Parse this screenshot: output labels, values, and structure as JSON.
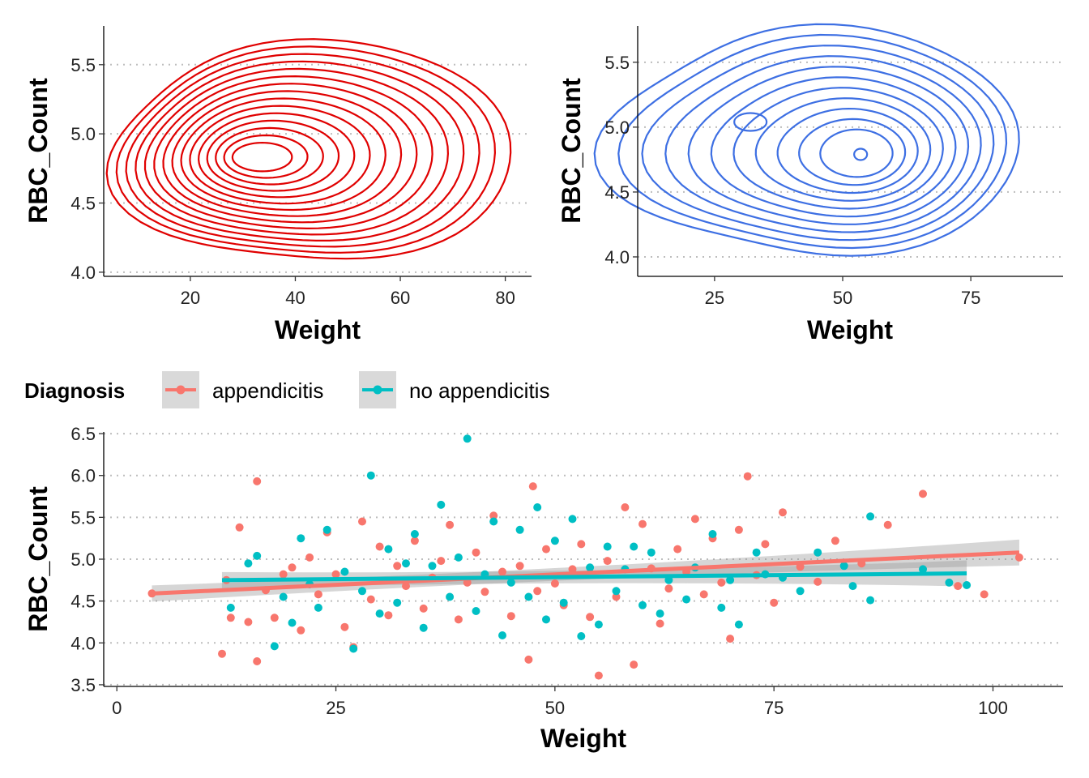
{
  "chart_data": [
    {
      "type": "contour",
      "xlabel": "Weight",
      "ylabel": "RBC_Count",
      "xticks": [
        20,
        40,
        60,
        80
      ],
      "yticks": [
        "4.0",
        "4.5",
        "5.0",
        "5.5"
      ],
      "xlim": [
        3.5,
        85
      ],
      "ylim": [
        3.97,
        5.78
      ],
      "grid": "horizontal dotted",
      "color": "#e00000",
      "peak": {
        "x": 33,
        "y": 4.83
      },
      "levels": 15
    },
    {
      "type": "contour",
      "xlabel": "Weight",
      "ylabel": "RBC_Count",
      "xticks": [
        25,
        50,
        75
      ],
      "yticks": [
        "4.0",
        "4.5",
        "5.0",
        "5.5"
      ],
      "xlim": [
        10,
        93
      ],
      "ylim": [
        3.85,
        5.78
      ],
      "grid": "horizontal dotted",
      "color": "#3d6fe3",
      "peaks": [
        {
          "x": 53.5,
          "y": 4.79
        },
        {
          "x": 32,
          "y": 5.04
        }
      ],
      "levels": 11
    },
    {
      "type": "scatter",
      "xlabel": "Weight",
      "ylabel": "RBC_Count",
      "xticks": [
        "0",
        "25",
        "50",
        "75",
        "100"
      ],
      "yticks": [
        "3.5",
        "4.0",
        "4.5",
        "5.0",
        "5.5",
        "6.0",
        "6.5"
      ],
      "xlim": [
        -1.5,
        108
      ],
      "ylim": [
        3.48,
        6.52
      ],
      "grid": "horizontal dotted",
      "legend": {
        "title": "Diagnosis",
        "position": "top",
        "entries": [
          {
            "label": "appendicitis",
            "color": "#f8766d"
          },
          {
            "label": "no appendicitis",
            "color": "#00bfc4"
          }
        ]
      },
      "series": [
        {
          "name": "appendicitis",
          "color": "#f8766d",
          "trend": {
            "x": [
              4,
              103
            ],
            "y": [
              4.59,
              5.08
            ]
          },
          "points": [
            [
              4,
              4.59
            ],
            [
              12,
              3.87
            ],
            [
              12.5,
              4.75
            ],
            [
              13,
              4.3
            ],
            [
              14,
              5.38
            ],
            [
              15,
              4.25
            ],
            [
              16,
              3.78
            ],
            [
              16,
              5.93
            ],
            [
              17,
              4.63
            ],
            [
              18,
              4.3
            ],
            [
              19,
              4.82
            ],
            [
              20,
              4.9
            ],
            [
              21,
              4.15
            ],
            [
              22,
              5.02
            ],
            [
              23,
              4.58
            ],
            [
              24,
              5.32
            ],
            [
              25,
              4.82
            ],
            [
              26,
              4.19
            ],
            [
              27,
              3.95
            ],
            [
              28,
              5.45
            ],
            [
              29,
              4.52
            ],
            [
              30,
              5.15
            ],
            [
              31,
              4.33
            ],
            [
              32,
              4.92
            ],
            [
              33,
              4.68
            ],
            [
              34,
              5.22
            ],
            [
              35,
              4.41
            ],
            [
              36,
              4.78
            ],
            [
              37,
              4.98
            ],
            [
              38,
              5.41
            ],
            [
              39,
              4.28
            ],
            [
              40,
              4.72
            ],
            [
              41,
              5.08
            ],
            [
              42,
              4.61
            ],
            [
              43,
              5.52
            ],
            [
              44,
              4.85
            ],
            [
              45,
              4.32
            ],
            [
              46,
              4.92
            ],
            [
              47,
              3.8
            ],
            [
              47.5,
              5.87
            ],
            [
              48,
              4.62
            ],
            [
              49,
              5.12
            ],
            [
              50,
              4.71
            ],
            [
              51,
              4.45
            ],
            [
              52,
              4.88
            ],
            [
              53,
              5.18
            ],
            [
              54,
              4.31
            ],
            [
              55,
              3.61
            ],
            [
              56,
              4.98
            ],
            [
              57,
              4.55
            ],
            [
              58,
              5.62
            ],
            [
              59,
              3.74
            ],
            [
              60,
              5.42
            ],
            [
              61,
              4.89
            ],
            [
              62,
              4.23
            ],
            [
              63,
              4.65
            ],
            [
              64,
              5.12
            ],
            [
              65,
              4.85
            ],
            [
              66,
              5.48
            ],
            [
              67,
              4.58
            ],
            [
              68,
              5.25
            ],
            [
              69,
              4.72
            ],
            [
              70,
              4.05
            ],
            [
              71,
              5.35
            ],
            [
              72,
              5.99
            ],
            [
              73,
              4.81
            ],
            [
              74,
              5.18
            ],
            [
              75,
              4.48
            ],
            [
              76,
              5.56
            ],
            [
              78,
              4.91
            ],
            [
              80,
              4.73
            ],
            [
              82,
              5.22
            ],
            [
              85,
              4.95
            ],
            [
              88,
              5.41
            ],
            [
              92,
              5.78
            ],
            [
              96,
              4.68
            ],
            [
              99,
              4.58
            ],
            [
              103,
              5.02
            ]
          ]
        },
        {
          "name": "no appendicitis",
          "color": "#00bfc4",
          "trend": {
            "x": [
              12,
              97
            ],
            "y": [
              4.75,
              4.83
            ]
          },
          "points": [
            [
              13,
              4.42
            ],
            [
              15,
              4.95
            ],
            [
              16,
              5.04
            ],
            [
              18,
              3.96
            ],
            [
              19,
              4.55
            ],
            [
              20,
              4.24
            ],
            [
              21,
              5.25
            ],
            [
              22,
              4.7
            ],
            [
              23,
              4.42
            ],
            [
              24,
              5.35
            ],
            [
              26,
              4.85
            ],
            [
              27,
              3.93
            ],
            [
              28,
              4.62
            ],
            [
              29,
              6.0
            ],
            [
              30,
              4.35
            ],
            [
              31,
              5.12
            ],
            [
              32,
              4.48
            ],
            [
              33,
              4.95
            ],
            [
              34,
              5.3
            ],
            [
              35,
              4.18
            ],
            [
              36,
              4.92
            ],
            [
              37,
              5.65
            ],
            [
              38,
              4.55
            ],
            [
              39,
              5.02
            ],
            [
              40,
              6.44
            ],
            [
              41,
              4.38
            ],
            [
              42,
              4.82
            ],
            [
              43,
              5.45
            ],
            [
              44,
              4.09
            ],
            [
              45,
              4.72
            ],
            [
              46,
              5.35
            ],
            [
              47,
              4.55
            ],
            [
              48,
              5.62
            ],
            [
              49,
              4.28
            ],
            [
              50,
              5.22
            ],
            [
              51,
              4.48
            ],
            [
              52,
              5.48
            ],
            [
              53,
              4.08
            ],
            [
              54,
              4.9
            ],
            [
              55,
              4.22
            ],
            [
              56,
              5.15
            ],
            [
              57,
              4.62
            ],
            [
              58,
              4.88
            ],
            [
              59,
              5.15
            ],
            [
              60,
              4.45
            ],
            [
              61,
              5.08
            ],
            [
              62,
              4.35
            ],
            [
              63,
              4.75
            ],
            [
              65,
              4.52
            ],
            [
              66,
              4.9
            ],
            [
              68,
              5.3
            ],
            [
              69,
              4.42
            ],
            [
              70,
              4.75
            ],
            [
              71,
              4.22
            ],
            [
              73,
              5.08
            ],
            [
              74,
              4.82
            ],
            [
              76,
              4.78
            ],
            [
              78,
              4.62
            ],
            [
              80,
              5.08
            ],
            [
              83,
              4.92
            ],
            [
              84,
              4.68
            ],
            [
              86,
              5.51
            ],
            [
              86,
              4.51
            ],
            [
              92,
              4.88
            ],
            [
              95,
              4.72
            ],
            [
              97,
              4.69
            ]
          ]
        }
      ]
    }
  ]
}
